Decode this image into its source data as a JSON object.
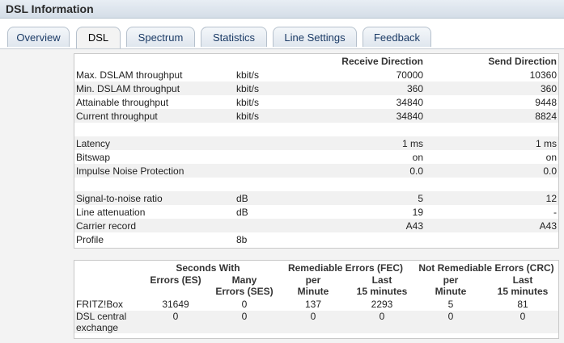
{
  "window": {
    "title": "DSL Information"
  },
  "tabs": [
    {
      "label": "Overview",
      "active": false
    },
    {
      "label": "DSL",
      "active": true
    },
    {
      "label": "Spectrum",
      "active": false
    },
    {
      "label": "Statistics",
      "active": false
    },
    {
      "label": "Line Settings",
      "active": false
    },
    {
      "label": "Feedback",
      "active": false
    }
  ],
  "line_table": {
    "headers": {
      "receive": "Receive Direction",
      "send": "Send Direction"
    },
    "rows": [
      {
        "label": "Max. DSLAM throughput",
        "unit": "kbit/s",
        "receive": "70000",
        "send": "10360"
      },
      {
        "label": "Min. DSLAM throughput",
        "unit": "kbit/s",
        "receive": "360",
        "send": "360"
      },
      {
        "label": "Attainable throughput",
        "unit": "kbit/s",
        "receive": "34840",
        "send": "9448"
      },
      {
        "label": "Current throughput",
        "unit": "kbit/s",
        "receive": "34840",
        "send": "8824"
      },
      {
        "label": "",
        "unit": "",
        "receive": "",
        "send": ""
      },
      {
        "label": "Latency",
        "unit": "",
        "receive": "1 ms",
        "send": "1 ms"
      },
      {
        "label": "Bitswap",
        "unit": "",
        "receive": "on",
        "send": "on"
      },
      {
        "label": "Impulse Noise Protection",
        "unit": "",
        "receive": "0.0",
        "send": "0.0"
      },
      {
        "label": "",
        "unit": "",
        "receive": "",
        "send": ""
      },
      {
        "label": "Signal-to-noise ratio",
        "unit": "dB",
        "receive": "5",
        "send": "12"
      },
      {
        "label": "Line attenuation",
        "unit": "dB",
        "receive": "19",
        "send": "-"
      },
      {
        "label": "Carrier record",
        "unit": "",
        "receive": "A43",
        "send": "A43"
      },
      {
        "label": "Profile",
        "unit": "8b",
        "receive": "",
        "send": ""
      }
    ]
  },
  "error_table": {
    "group_headers": {
      "seconds_with": "Seconds With",
      "fec": "Remediable Errors (FEC)",
      "crc": "Not Remediable Errors (CRC)"
    },
    "sub_headers": {
      "es": "Errors (ES)",
      "ses_line1": "Many",
      "ses_line2": "Errors (SES)",
      "fec_per_line1": "per",
      "fec_per_line2": "Minute",
      "fec_last_line1": "Last",
      "fec_last_line2": "15 minutes",
      "crc_per_line1": "per",
      "crc_per_line2": "Minute",
      "crc_last_line1": "Last",
      "crc_last_line2": "15 minutes"
    },
    "rows": [
      {
        "label": "FRITZ!Box",
        "es": "31649",
        "ses": "0",
        "fec_per_min": "137",
        "fec_last15": "2293",
        "crc_per_min": "5",
        "crc_last15": "81"
      },
      {
        "label_line1": "DSL central",
        "label_line2": "exchange",
        "es": "0",
        "ses": "0",
        "fec_per_min": "0",
        "fec_last15": "0",
        "crc_per_min": "0",
        "crc_last15": "0"
      }
    ]
  }
}
